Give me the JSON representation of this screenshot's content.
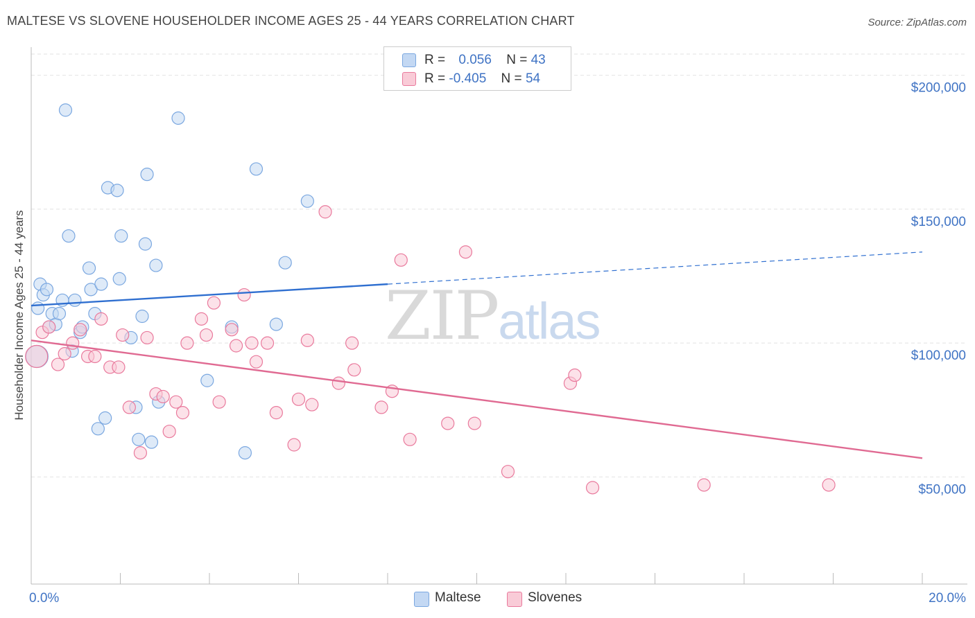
{
  "title": "MALTESE VS SLOVENE HOUSEHOLDER INCOME AGES 25 - 44 YEARS CORRELATION CHART",
  "source": "Source: ZipAtlas.com",
  "watermark": {
    "zip": "ZIP",
    "atlas": "atlas"
  },
  "legend": {
    "rows": [
      {
        "r_label": "R =",
        "r_value": "0.056",
        "n_label": "N =",
        "n_value": "43",
        "color": "#a8c8f0"
      },
      {
        "r_label": "R =",
        "r_value": "-0.405",
        "n_label": "N =",
        "n_value": "54",
        "color": "#f7b6c8"
      }
    ]
  },
  "bottom_legend": [
    "Maltese",
    "Slovenes"
  ],
  "chart_data": {
    "type": "scatter",
    "title": "MALTESE VS SLOVENE HOUSEHOLDER INCOME AGES 25 - 44 YEARS CORRELATION CHART",
    "xlabel": "",
    "ylabel": "Householder Income Ages 25 - 44 years",
    "xlim": [
      0,
      20
    ],
    "ylim": [
      10000,
      210000
    ],
    "x_tick_labels": [
      "0.0%",
      "20.0%"
    ],
    "y_ticks": [
      50000,
      100000,
      150000,
      200000
    ],
    "y_tick_labels": [
      "$50,000",
      "$100,000",
      "$150,000",
      "$200,000"
    ],
    "grid": true,
    "series": [
      {
        "name": "Maltese",
        "color": "#7aa7e0",
        "fill": "#c3d8f3",
        "points": [
          [
            0.13,
            95000
          ],
          [
            0.15,
            113000
          ],
          [
            0.2,
            122000
          ],
          [
            0.27,
            118000
          ],
          [
            0.35,
            120000
          ],
          [
            0.4,
            106000
          ],
          [
            0.47,
            111000
          ],
          [
            0.55,
            107000
          ],
          [
            0.63,
            111000
          ],
          [
            0.7,
            116000
          ],
          [
            0.77,
            187000
          ],
          [
            0.84,
            140000
          ],
          [
            0.92,
            97000
          ],
          [
            0.98,
            116000
          ],
          [
            1.1,
            104000
          ],
          [
            1.15,
            106000
          ],
          [
            1.3,
            128000
          ],
          [
            1.34,
            120000
          ],
          [
            1.43,
            111000
          ],
          [
            1.5,
            68000
          ],
          [
            1.57,
            122000
          ],
          [
            1.66,
            72000
          ],
          [
            1.72,
            158000
          ],
          [
            1.93,
            157000
          ],
          [
            1.98,
            124000
          ],
          [
            2.02,
            140000
          ],
          [
            2.24,
            102000
          ],
          [
            2.35,
            76000
          ],
          [
            2.41,
            64000
          ],
          [
            2.49,
            110000
          ],
          [
            2.56,
            137000
          ],
          [
            2.6,
            163000
          ],
          [
            2.7,
            63000
          ],
          [
            2.8,
            129000
          ],
          [
            2.86,
            78000
          ],
          [
            3.3,
            184000
          ],
          [
            3.95,
            86000
          ],
          [
            4.5,
            106000
          ],
          [
            4.8,
            59000
          ],
          [
            5.05,
            165000
          ],
          [
            5.5,
            107000
          ],
          [
            5.7,
            130000
          ],
          [
            6.2,
            153000
          ]
        ],
        "trend": {
          "x0": 0,
          "y0": 114000,
          "x1": 8.0,
          "y1": 122000,
          "dashed_to_x": 20,
          "dashed_to_y": 134000
        }
      },
      {
        "name": "Slovenes",
        "color": "#e9799c",
        "fill": "#f9cbd7",
        "points": [
          [
            0.12,
            95000
          ],
          [
            0.25,
            104000
          ],
          [
            0.4,
            106000
          ],
          [
            0.6,
            92000
          ],
          [
            0.75,
            96000
          ],
          [
            0.93,
            100000
          ],
          [
            1.1,
            105000
          ],
          [
            1.27,
            95000
          ],
          [
            1.43,
            95000
          ],
          [
            1.57,
            109000
          ],
          [
            1.77,
            91000
          ],
          [
            1.96,
            91000
          ],
          [
            2.05,
            103000
          ],
          [
            2.2,
            76000
          ],
          [
            2.45,
            59000
          ],
          [
            2.6,
            102000
          ],
          [
            2.8,
            81000
          ],
          [
            2.96,
            80000
          ],
          [
            3.1,
            67000
          ],
          [
            3.25,
            78000
          ],
          [
            3.4,
            74000
          ],
          [
            3.5,
            100000
          ],
          [
            3.82,
            109000
          ],
          [
            3.93,
            103000
          ],
          [
            4.1,
            115000
          ],
          [
            4.22,
            78000
          ],
          [
            4.5,
            105000
          ],
          [
            4.6,
            99000
          ],
          [
            4.78,
            118000
          ],
          [
            5.05,
            93000
          ],
          [
            4.95,
            100000
          ],
          [
            5.3,
            100000
          ],
          [
            5.5,
            74000
          ],
          [
            5.9,
            62000
          ],
          [
            6.0,
            79000
          ],
          [
            6.2,
            101000
          ],
          [
            6.3,
            77000
          ],
          [
            6.6,
            149000
          ],
          [
            6.9,
            85000
          ],
          [
            7.2,
            100000
          ],
          [
            7.25,
            90000
          ],
          [
            7.86,
            76000
          ],
          [
            8.1,
            82000
          ],
          [
            8.3,
            131000
          ],
          [
            8.5,
            64000
          ],
          [
            9.35,
            70000
          ],
          [
            9.75,
            134000
          ],
          [
            9.95,
            70000
          ],
          [
            10.7,
            52000
          ],
          [
            12.1,
            85000
          ],
          [
            12.2,
            88000
          ],
          [
            12.6,
            46000
          ],
          [
            15.1,
            47000
          ],
          [
            17.9,
            47000
          ]
        ],
        "trend": {
          "x0": 0,
          "y0": 101000,
          "x1": 20,
          "y1": 57000
        }
      }
    ]
  }
}
